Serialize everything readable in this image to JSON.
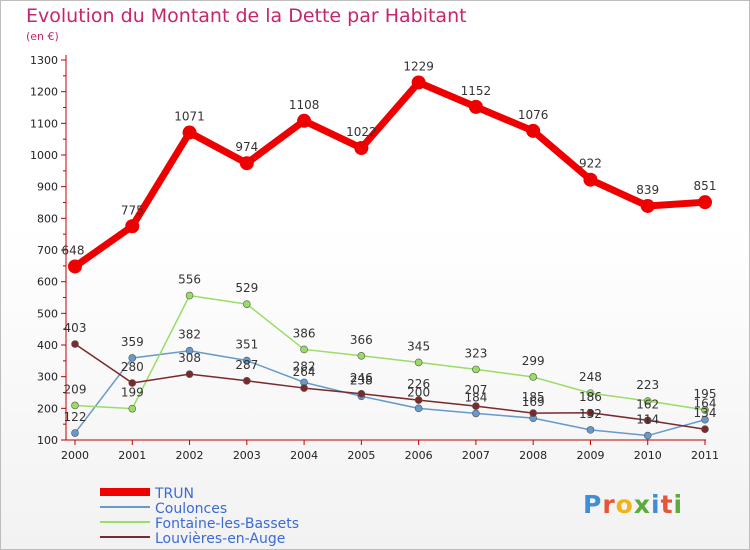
{
  "title": "Evolution du Montant de la Dette par Habitant",
  "unit_label": "(en €)",
  "logo_text": "Proxiti",
  "logo_colors": [
    "#3f8fd8",
    "#e4553a",
    "#f2b21a",
    "#5aab3a",
    "#3f8fd8",
    "#e4553a",
    "#5aab3a"
  ],
  "chart_data": {
    "type": "line",
    "title": "Evolution du Montant de la Dette par Habitant",
    "ylabel": "(en €)",
    "xlabel": "",
    "categories": [
      "2000",
      "2001",
      "2002",
      "2003",
      "2004",
      "2005",
      "2006",
      "2007",
      "2008",
      "2009",
      "2010",
      "2011"
    ],
    "ylim": [
      100,
      1300
    ],
    "yticks": [
      100,
      200,
      300,
      400,
      500,
      600,
      700,
      800,
      900,
      1000,
      1100,
      1200,
      1300
    ],
    "legend_position": "bottom-left",
    "grid": false,
    "series": [
      {
        "name": "TRUN",
        "color": "#ee0000",
        "values": [
          648,
          775,
          1071,
          974,
          1108,
          1022,
          1229,
          1152,
          1076,
          922,
          839,
          851
        ],
        "labels": [
          "648",
          "775",
          "1071",
          "974",
          "1108",
          "1022",
          "1229",
          "1152",
          "1076",
          "922",
          "839",
          "851"
        ]
      },
      {
        "name": "Coulonces",
        "color": "#6699cc",
        "values": [
          122,
          359,
          382,
          351,
          282,
          238,
          200,
          184,
          169,
          132,
          114,
          164
        ],
        "labels": [
          "122",
          "359",
          "382",
          "351",
          "282",
          "238",
          "200",
          "184",
          "169",
          "132",
          "114",
          "164"
        ]
      },
      {
        "name": "Fontaine-les-Bassets",
        "color": "#99dd66",
        "values": [
          209,
          199,
          556,
          529,
          386,
          366,
          345,
          323,
          299,
          248,
          223,
          195
        ],
        "labels": [
          "209",
          "199",
          "556",
          "529",
          "386",
          "366",
          "345",
          "323",
          "299",
          "248",
          "223",
          "195"
        ]
      },
      {
        "name": "Louvières-en-Auge",
        "color": "#7a2a2a",
        "values": [
          403,
          280,
          308,
          287,
          264,
          246,
          226,
          207,
          185,
          186,
          162,
          134
        ],
        "labels": [
          "403",
          "280",
          "308",
          "287",
          "264",
          "246",
          "226",
          "207",
          "185",
          "186",
          "162",
          "134"
        ]
      }
    ]
  }
}
